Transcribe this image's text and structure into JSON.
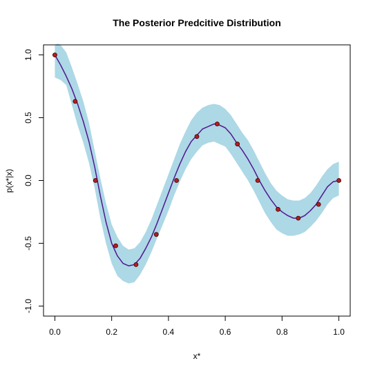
{
  "chart_data": {
    "type": "line",
    "title": "The Posterior Predcitive Distribution",
    "xlabel": "x*",
    "ylabel": "p(x*|x)",
    "xlim": [
      -0.04,
      1.04
    ],
    "ylim": [
      -1.08,
      1.08
    ],
    "x_ticks": [
      0.0,
      0.2,
      0.4,
      0.6,
      0.8,
      1.0
    ],
    "x_tick_labels": [
      "0.0",
      "0.2",
      "0.4",
      "0.6",
      "0.8",
      "1.0"
    ],
    "y_ticks": [
      -1.0,
      -0.5,
      0.0,
      0.5,
      1.0
    ],
    "y_tick_labels": [
      "-1.0",
      "-0.5",
      "0.0",
      "0.5",
      "1.0"
    ],
    "grid": false,
    "colors": {
      "band": "#add8e6",
      "mean_line": "#7b1fa2",
      "mean_line_inner": "#1a237e",
      "points_fill": "#b71c1c",
      "points_stroke": "#3a0000",
      "axes": "#000000"
    },
    "series": [
      {
        "kind": "predictive_mean",
        "x": [
          0.0,
          0.02,
          0.04,
          0.06,
          0.08,
          0.1,
          0.12,
          0.14,
          0.16,
          0.18,
          0.2,
          0.22,
          0.24,
          0.26,
          0.28,
          0.3,
          0.32,
          0.34,
          0.36,
          0.38,
          0.4,
          0.42,
          0.44,
          0.46,
          0.48,
          0.5,
          0.52,
          0.54,
          0.56,
          0.58,
          0.6,
          0.62,
          0.64,
          0.66,
          0.68,
          0.7,
          0.72,
          0.74,
          0.76,
          0.78,
          0.8,
          0.82,
          0.84,
          0.86,
          0.88,
          0.9,
          0.92,
          0.94,
          0.96,
          0.98,
          1.0
        ],
        "y": [
          1.0,
          0.92,
          0.83,
          0.73,
          0.61,
          0.47,
          0.31,
          0.11,
          -0.12,
          -0.33,
          -0.5,
          -0.6,
          -0.66,
          -0.68,
          -0.67,
          -0.62,
          -0.54,
          -0.45,
          -0.34,
          -0.22,
          -0.1,
          0.02,
          0.13,
          0.23,
          0.31,
          0.36,
          0.41,
          0.43,
          0.45,
          0.44,
          0.42,
          0.37,
          0.3,
          0.24,
          0.17,
          0.09,
          0.0,
          -0.08,
          -0.15,
          -0.21,
          -0.25,
          -0.28,
          -0.3,
          -0.3,
          -0.28,
          -0.24,
          -0.19,
          -0.12,
          -0.05,
          -0.01,
          0.0
        ]
      },
      {
        "kind": "band_upper",
        "x": [
          0.0,
          0.01,
          0.02,
          0.04,
          0.06,
          0.08,
          0.1,
          0.12,
          0.14,
          0.16,
          0.18,
          0.2,
          0.22,
          0.24,
          0.26,
          0.28,
          0.3,
          0.32,
          0.34,
          0.36,
          0.38,
          0.4,
          0.42,
          0.44,
          0.46,
          0.48,
          0.5,
          0.52,
          0.54,
          0.56,
          0.58,
          0.6,
          0.62,
          0.64,
          0.66,
          0.68,
          0.7,
          0.72,
          0.74,
          0.76,
          0.78,
          0.8,
          0.82,
          0.84,
          0.86,
          0.88,
          0.9,
          0.92,
          0.94,
          0.96,
          0.98,
          1.0
        ],
        "y": [
          1.08,
          1.09,
          1.08,
          1.02,
          0.9,
          0.77,
          0.63,
          0.46,
          0.24,
          0.02,
          -0.18,
          -0.35,
          -0.45,
          -0.52,
          -0.55,
          -0.54,
          -0.49,
          -0.41,
          -0.31,
          -0.19,
          -0.07,
          0.05,
          0.17,
          0.29,
          0.39,
          0.48,
          0.54,
          0.58,
          0.6,
          0.61,
          0.6,
          0.57,
          0.52,
          0.45,
          0.38,
          0.32,
          0.24,
          0.15,
          0.06,
          -0.02,
          -0.08,
          -0.12,
          -0.15,
          -0.16,
          -0.16,
          -0.14,
          -0.1,
          -0.04,
          0.03,
          0.09,
          0.13,
          0.15
        ]
      },
      {
        "kind": "band_lower",
        "x": [
          0.0,
          0.02,
          0.04,
          0.06,
          0.08,
          0.1,
          0.12,
          0.14,
          0.16,
          0.18,
          0.2,
          0.22,
          0.24,
          0.26,
          0.28,
          0.3,
          0.32,
          0.34,
          0.36,
          0.38,
          0.4,
          0.42,
          0.44,
          0.46,
          0.48,
          0.5,
          0.52,
          0.54,
          0.56,
          0.58,
          0.6,
          0.62,
          0.64,
          0.66,
          0.68,
          0.7,
          0.72,
          0.74,
          0.76,
          0.78,
          0.8,
          0.82,
          0.84,
          0.86,
          0.88,
          0.9,
          0.92,
          0.94,
          0.96,
          0.98,
          1.0
        ],
        "y": [
          0.82,
          0.8,
          0.76,
          0.6,
          0.44,
          0.3,
          0.14,
          -0.06,
          -0.3,
          -0.5,
          -0.66,
          -0.76,
          -0.8,
          -0.82,
          -0.81,
          -0.75,
          -0.67,
          -0.57,
          -0.46,
          -0.35,
          -0.24,
          -0.12,
          -0.01,
          0.09,
          0.17,
          0.23,
          0.28,
          0.3,
          0.31,
          0.29,
          0.27,
          0.21,
          0.14,
          0.07,
          0.0,
          -0.08,
          -0.17,
          -0.26,
          -0.33,
          -0.39,
          -0.42,
          -0.44,
          -0.44,
          -0.43,
          -0.41,
          -0.37,
          -0.32,
          -0.26,
          -0.19,
          -0.14,
          -0.12
        ]
      },
      {
        "kind": "observed_points",
        "x": [
          0.0,
          0.0714,
          0.1429,
          0.2143,
          0.2857,
          0.3571,
          0.4286,
          0.5,
          0.5714,
          0.6429,
          0.7143,
          0.7857,
          0.8571,
          0.9286,
          1.0
        ],
        "y": [
          1.0,
          0.63,
          0.0,
          -0.52,
          -0.67,
          -0.43,
          0.0,
          0.35,
          0.45,
          0.29,
          0.0,
          -0.23,
          -0.3,
          -0.19,
          0.0
        ]
      }
    ]
  }
}
